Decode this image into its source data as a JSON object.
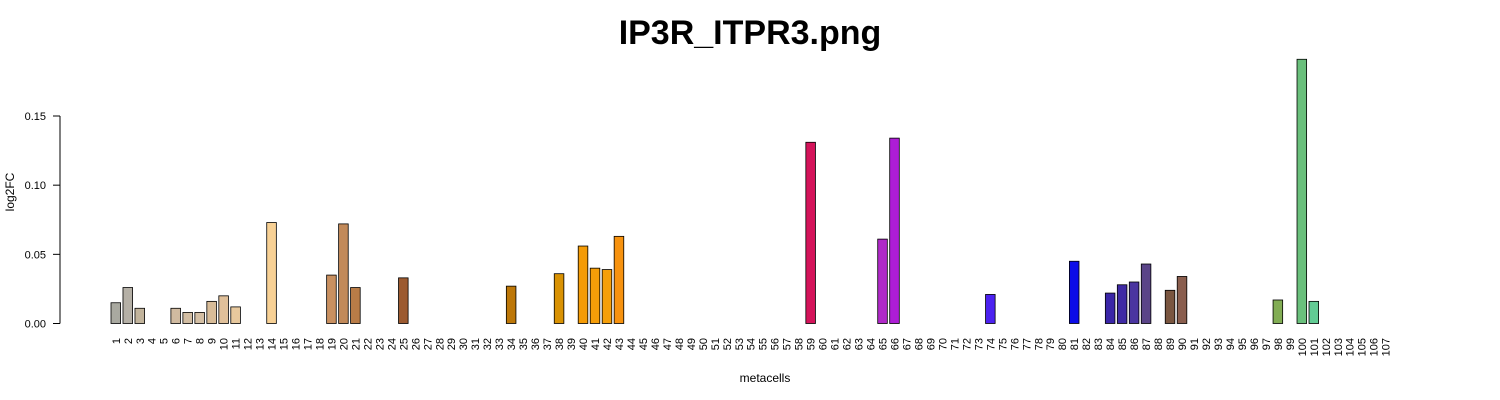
{
  "chart_data": {
    "type": "bar",
    "title": "IP3R_ITPR3.png",
    "xlabel": "metacells",
    "ylabel": "log2FC",
    "ylim": [
      0,
      0.2
    ],
    "yticks": [
      "0.00",
      "0.05",
      "0.10",
      "0.15"
    ],
    "ytick_values": [
      0,
      0.05,
      0.1,
      0.15
    ],
    "grid": false,
    "legend": "none",
    "categories": [
      "1",
      "2",
      "3",
      "4",
      "5",
      "6",
      "7",
      "8",
      "9",
      "10",
      "11",
      "12",
      "13",
      "14",
      "15",
      "16",
      "17",
      "18",
      "19",
      "20",
      "21",
      "22",
      "23",
      "24",
      "25",
      "26",
      "27",
      "28",
      "29",
      "30",
      "31",
      "32",
      "33",
      "34",
      "35",
      "36",
      "37",
      "38",
      "39",
      "40",
      "41",
      "42",
      "43",
      "44",
      "45",
      "46",
      "47",
      "48",
      "49",
      "50",
      "51",
      "52",
      "53",
      "54",
      "55",
      "56",
      "57",
      "58",
      "59",
      "60",
      "61",
      "62",
      "63",
      "64",
      "65",
      "66",
      "67",
      "68",
      "69",
      "70",
      "71",
      "72",
      "73",
      "74",
      "75",
      "76",
      "77",
      "78",
      "79",
      "80",
      "81",
      "82",
      "83",
      "84",
      "85",
      "86",
      "87",
      "88",
      "89",
      "90",
      "91",
      "92",
      "93",
      "94",
      "95",
      "96",
      "97",
      "98",
      "99",
      "100",
      "101",
      "102",
      "103",
      "104",
      "105",
      "106",
      "107"
    ],
    "values": [
      0.015,
      0.026,
      0.011,
      0,
      0,
      0.011,
      0.008,
      0.008,
      0.016,
      0.02,
      0.012,
      0,
      0,
      0.073,
      0,
      0,
      0,
      0,
      0.035,
      0.072,
      0.026,
      0,
      0,
      0,
      0.033,
      0,
      0,
      0,
      0,
      0,
      0,
      0,
      0,
      0.027,
      0,
      0,
      0,
      0.036,
      0,
      0.056,
      0.04,
      0.039,
      0.063,
      0,
      0,
      0,
      0,
      0,
      0,
      0,
      0,
      0,
      0,
      0,
      0,
      0,
      0,
      0,
      0.131,
      0,
      0,
      0,
      0,
      0,
      0.061,
      0.134,
      0,
      0,
      0,
      0,
      0,
      0,
      0,
      0.021,
      0,
      0,
      0,
      0,
      0,
      0,
      0.045,
      0,
      0,
      0.022,
      0.028,
      0.03,
      0.043,
      0,
      0.024,
      0.034,
      0,
      0,
      0,
      0,
      0,
      0,
      0,
      0.017,
      0,
      0.191,
      0.016,
      0,
      0,
      0,
      0,
      0,
      0
    ],
    "colors": [
      "#a9a9a0",
      "#b5b0a6",
      "#c2b49c",
      "#c8b8a0",
      "#cbbba1",
      "#d0baa0",
      "#d2bda2",
      "#d4bfa4",
      "#d8bc98",
      "#e0c09a",
      "#e7c89d",
      "#f0d0a4",
      "#f5d6a8",
      "#f8d195",
      "#eebc7e",
      "#e3ab6e",
      "#d8a065",
      "#d09563",
      "#c99060",
      "#c28a5a",
      "#b97c47",
      "#b07040",
      "#a8663a",
      "#a15f34",
      "#9c5a30",
      "#a36227",
      "#aa6a1f",
      "#b07018",
      "#b47412",
      "#b8760e",
      "#ba760b",
      "#bc770a",
      "#bd7709",
      "#bd7708",
      "#c17d08",
      "#c98507",
      "#d18c05",
      "#d99203",
      "#e49901",
      "#f49b06",
      "#f59d08",
      "#f59f0a",
      "#f7920e",
      "#f0502a",
      "#e83838",
      "#e52b3c",
      "#e22840",
      "#e02544",
      "#de2246",
      "#dc1f48",
      "#da1c4a",
      "#d8194c",
      "#d6164e",
      "#d41350",
      "#d21052",
      "#d00d54",
      "#ce0a56",
      "#cc0758",
      "#d4145a",
      "#d01890",
      "#cb1cb8",
      "#c31ec8",
      "#bb20d0",
      "#b322d4",
      "#b02ac8",
      "#ad1dd5",
      "#8f2ad8",
      "#7a2ee0",
      "#6a30e6",
      "#5a30ea",
      "#4a2ef0",
      "#3e2cf2",
      "#3828f4",
      "#4c22f0",
      "#3018f5",
      "#2414f8",
      "#1810fa",
      "#100cfc",
      "#0808fe",
      "#0404ff",
      "#0c0ce8",
      "#2a1fb0",
      "#3020aa",
      "#3a25a8",
      "#3f2aa4",
      "#4a35a0",
      "#5a4488",
      "#6a4e70",
      "#7a5640",
      "#8a5e4e",
      "#7a5040",
      "#6e4a3a",
      "#66543a",
      "#5e6a3e",
      "#627a44",
      "#6a8a4a",
      "#729a50",
      "#82ad54",
      "#74bc6c",
      "#6ac07c",
      "#62cc94",
      "#5ec898",
      "#5bc59a",
      "#58c29c",
      "#55bf9e",
      "#52bca0",
      "#50baa2"
    ]
  }
}
